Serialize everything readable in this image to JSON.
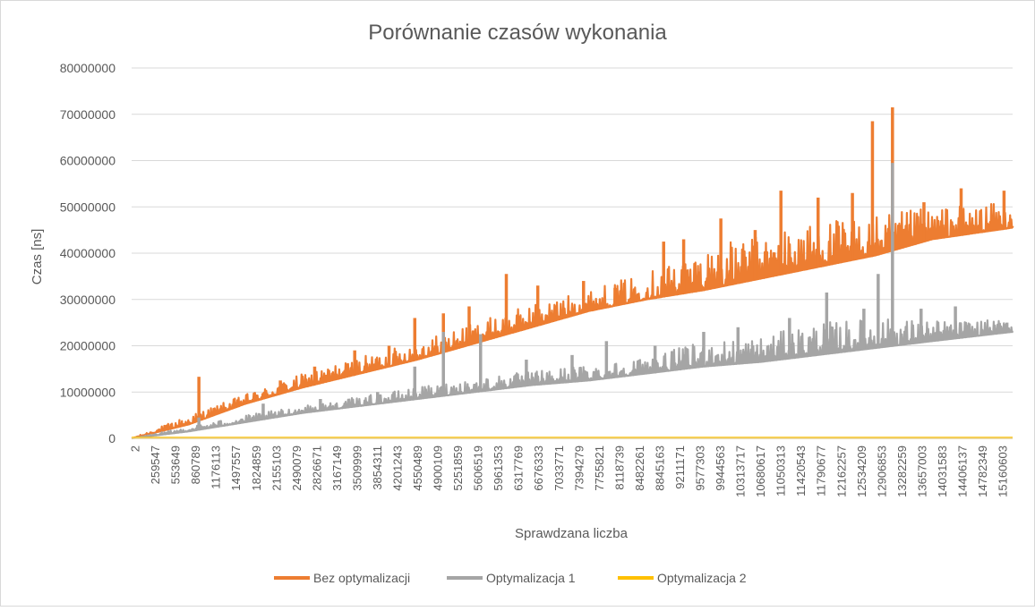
{
  "chart_data": {
    "type": "line",
    "title": "Porównanie czasów wykonania",
    "xlabel": "Sprawdzana liczba",
    "ylabel": "Czas [ns]",
    "ylim": [
      0,
      80000000
    ],
    "y_ticks": [
      0,
      10000000,
      20000000,
      30000000,
      40000000,
      50000000,
      60000000,
      70000000,
      80000000
    ],
    "x_tick_labels": [
      "2",
      "259547",
      "553649",
      "860789",
      "1176113",
      "1497557",
      "1824859",
      "2155103",
      "2490079",
      "2826671",
      "3167149",
      "3509999",
      "3854311",
      "4201243",
      "4550489",
      "4900109",
      "5251859",
      "5606519",
      "5961353",
      "6317769",
      "6676333",
      "7033771",
      "7394279",
      "7755821",
      "8118739",
      "8482261",
      "8845163",
      "9211171",
      "9577303",
      "9944563",
      "10313717",
      "10680617",
      "11050313",
      "11420543",
      "11790677",
      "12162257",
      "12534209",
      "12906853",
      "13282259",
      "13657003",
      "14031583",
      "14406137",
      "14782349",
      "15160603"
    ],
    "x_range": [
      2,
      15400000
    ],
    "grid": true,
    "legend": "bottom",
    "series": [
      {
        "name": "Bez optymalizacji",
        "color": "#ED7D31",
        "baseline": [
          [
            2,
            0
          ],
          [
            1000000,
            3000000
          ],
          [
            2000000,
            7500000
          ],
          [
            3000000,
            11000000
          ],
          [
            4000000,
            14000000
          ],
          [
            5000000,
            17000000
          ],
          [
            6000000,
            20500000
          ],
          [
            7000000,
            24000000
          ],
          [
            8000000,
            27500000
          ],
          [
            9000000,
            30000000
          ],
          [
            10000000,
            32000000
          ],
          [
            11000000,
            34500000
          ],
          [
            12000000,
            37000000
          ],
          [
            13000000,
            39500000
          ],
          [
            14000000,
            43000000
          ],
          [
            15400000,
            45500000
          ]
        ],
        "upper": [
          [
            2,
            0
          ],
          [
            1000000,
            5000000
          ],
          [
            2000000,
            9500000
          ],
          [
            3000000,
            14000000
          ],
          [
            4000000,
            17500000
          ],
          [
            5000000,
            21000000
          ],
          [
            6000000,
            25000000
          ],
          [
            7000000,
            29000000
          ],
          [
            8000000,
            32000000
          ],
          [
            9000000,
            36000000
          ],
          [
            10000000,
            41000000
          ],
          [
            11000000,
            44000000
          ],
          [
            12000000,
            47000000
          ],
          [
            13000000,
            48000000
          ],
          [
            14000000,
            50000000
          ],
          [
            15400000,
            51000000
          ]
        ],
        "peaks": [
          [
            1176113,
            13300000
          ],
          [
            1900000,
            8000000
          ],
          [
            2600000,
            12500000
          ],
          [
            3200000,
            15500000
          ],
          [
            3900000,
            19000000
          ],
          [
            4500000,
            20000000
          ],
          [
            4950000,
            26000000
          ],
          [
            5450000,
            27000000
          ],
          [
            5900000,
            28500000
          ],
          [
            6550000,
            35500000
          ],
          [
            7100000,
            33000000
          ],
          [
            7900000,
            34000000
          ],
          [
            8450000,
            32500000
          ],
          [
            9300000,
            42500000
          ],
          [
            9650000,
            43000000
          ],
          [
            10300000,
            47500000
          ],
          [
            10900000,
            45000000
          ],
          [
            11350000,
            53500000
          ],
          [
            12000000,
            52000000
          ],
          [
            12600000,
            53000000
          ],
          [
            12950000,
            68500000
          ],
          [
            13300000,
            71500000
          ],
          [
            13850000,
            51000000
          ],
          [
            14500000,
            54000000
          ],
          [
            15250000,
            53500000
          ]
        ]
      },
      {
        "name": "Optymalizacja 1",
        "color": "#A5A5A5",
        "baseline": [
          [
            2,
            0
          ],
          [
            1000000,
            1500000
          ],
          [
            2000000,
            3500000
          ],
          [
            3000000,
            5500000
          ],
          [
            4000000,
            7000000
          ],
          [
            5000000,
            8500000
          ],
          [
            6000000,
            10000000
          ],
          [
            7000000,
            11500000
          ],
          [
            8000000,
            12500000
          ],
          [
            9000000,
            14000000
          ],
          [
            10000000,
            15500000
          ],
          [
            11000000,
            16500000
          ],
          [
            12000000,
            18000000
          ],
          [
            13000000,
            19500000
          ],
          [
            14000000,
            21000000
          ],
          [
            15400000,
            23000000
          ]
        ],
        "upper": [
          [
            2,
            0
          ],
          [
            1000000,
            2500000
          ],
          [
            2000000,
            5000000
          ],
          [
            3000000,
            7000000
          ],
          [
            4000000,
            9000000
          ],
          [
            5000000,
            11000000
          ],
          [
            6000000,
            13000000
          ],
          [
            7000000,
            14500000
          ],
          [
            8000000,
            16000000
          ],
          [
            9000000,
            17500000
          ],
          [
            10000000,
            21000000
          ],
          [
            11000000,
            22000000
          ],
          [
            12000000,
            25000000
          ],
          [
            13000000,
            26000000
          ],
          [
            14000000,
            25500000
          ],
          [
            15400000,
            25500000
          ]
        ],
        "peaks": [
          [
            1176113,
            4500000
          ],
          [
            2300000,
            7500000
          ],
          [
            3300000,
            8500000
          ],
          [
            4300000,
            10000000
          ],
          [
            4950000,
            15500000
          ],
          [
            5450000,
            23000000
          ],
          [
            6100000,
            22500000
          ],
          [
            6900000,
            17000000
          ],
          [
            7700000,
            18000000
          ],
          [
            8300000,
            21000000
          ],
          [
            9150000,
            20000000
          ],
          [
            10000000,
            23000000
          ],
          [
            10600000,
            24000000
          ],
          [
            11500000,
            26000000
          ],
          [
            12150000,
            31500000
          ],
          [
            12800000,
            28000000
          ],
          [
            13050000,
            35500000
          ],
          [
            13300000,
            59500000
          ],
          [
            13800000,
            28000000
          ],
          [
            14400000,
            28500000
          ],
          [
            15300000,
            25000000
          ]
        ]
      },
      {
        "name": "Optymalizacja 2",
        "color": "#FFC000",
        "values_flat_near": 100000
      }
    ]
  }
}
